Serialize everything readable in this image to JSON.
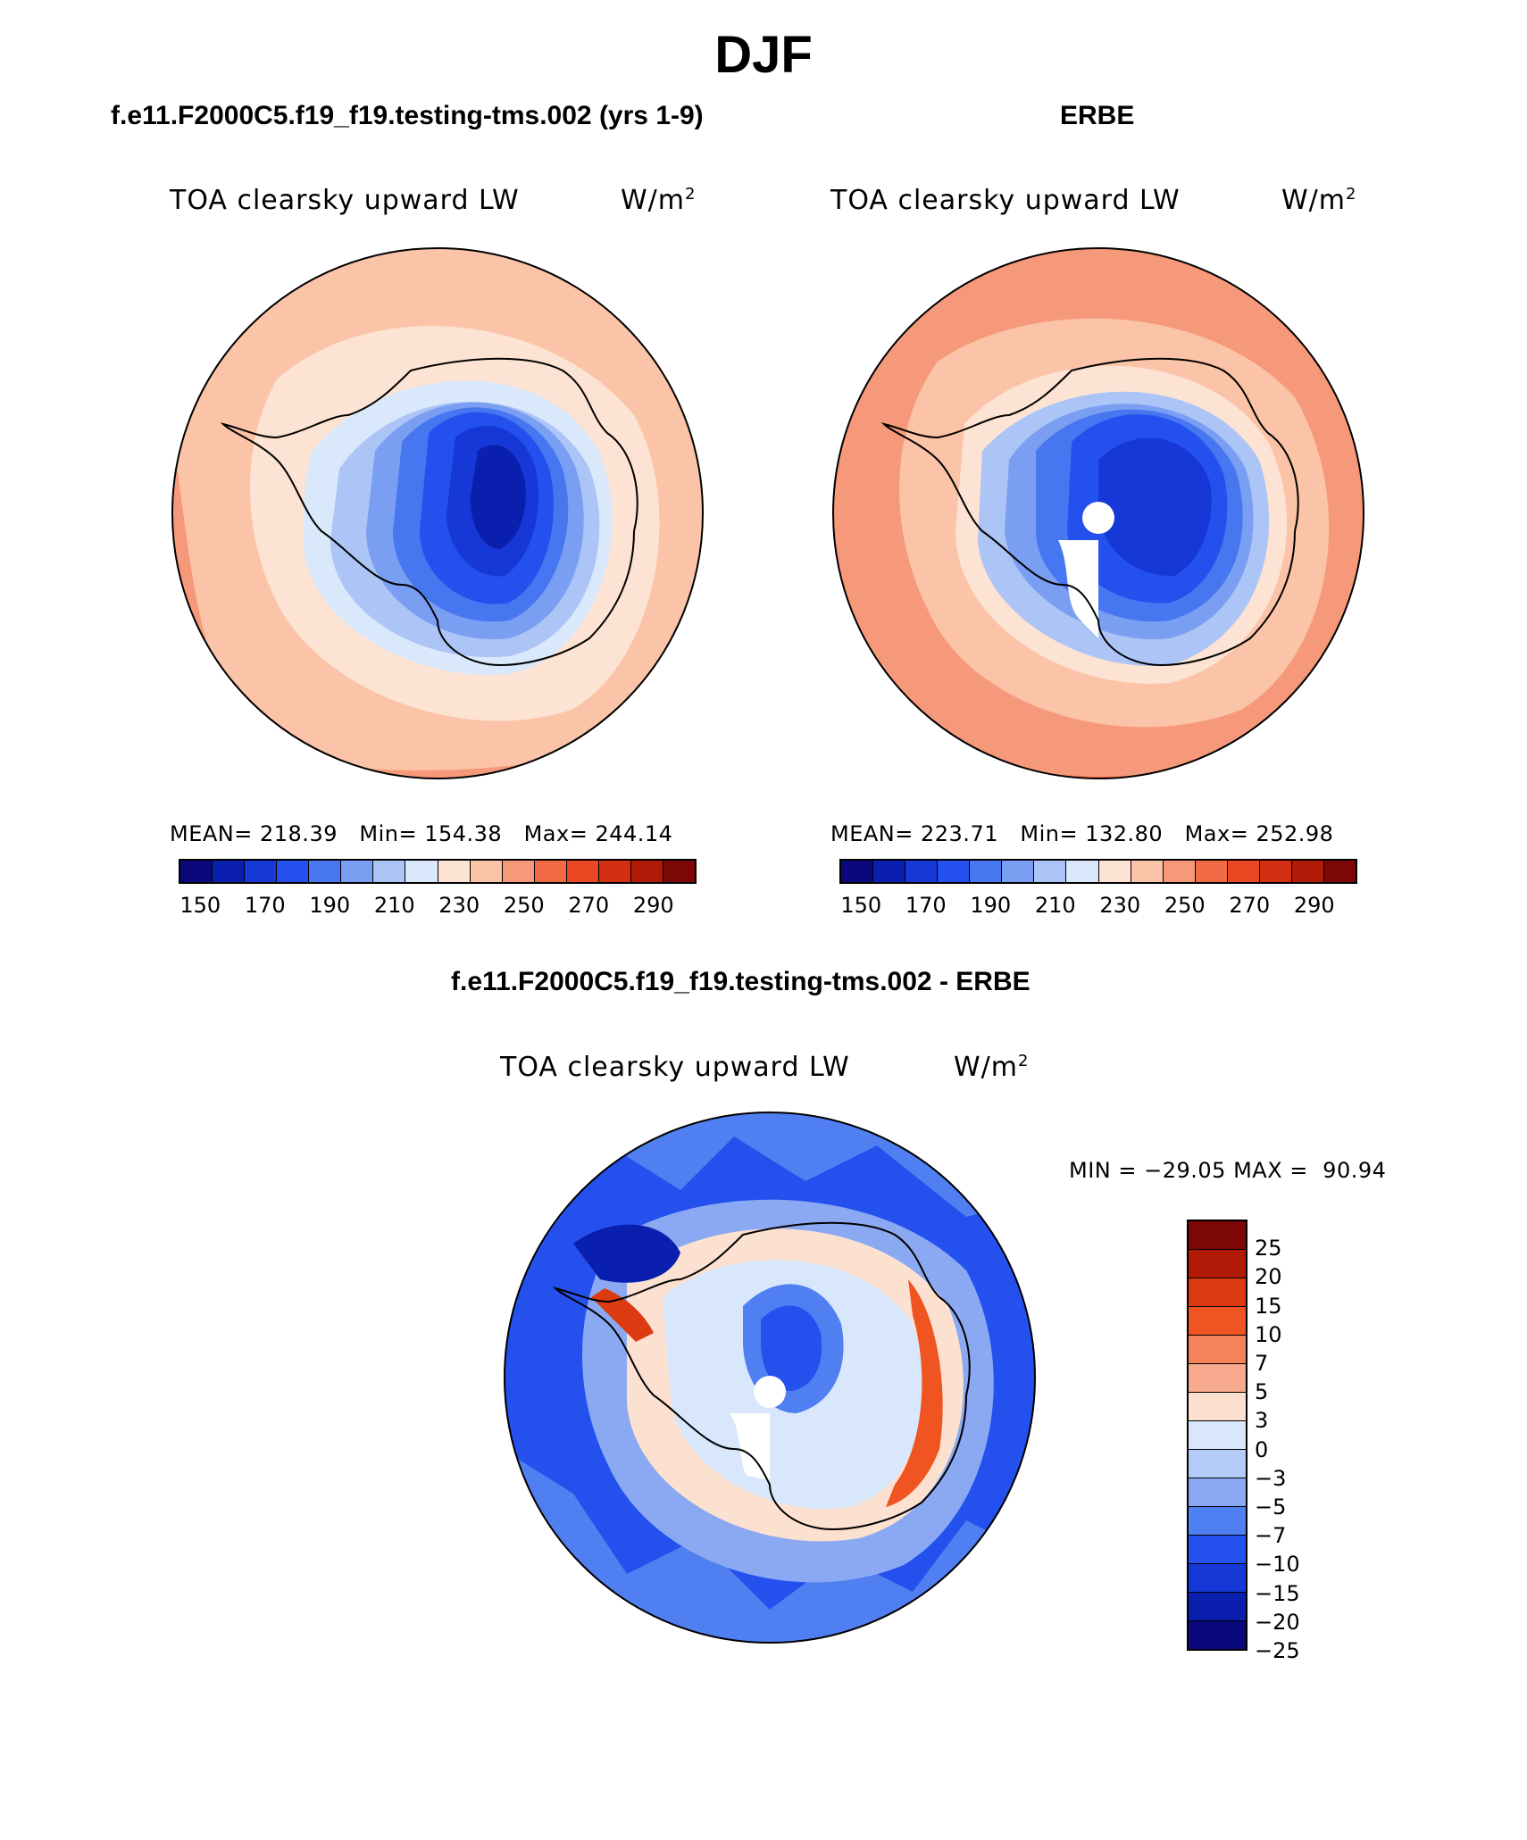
{
  "title": "DJF",
  "panels": [
    {
      "title": "f.e11.F2000C5.f19_f19.testing-tms.002 (yrs 1-9)",
      "field_label": "TOA clearsky upward LW",
      "units_base": "W/m",
      "units_exp": "2",
      "stats": {
        "mean_label": "MEAN=",
        "mean": "218.39",
        "min_label": "Min=",
        "min": "154.38",
        "max_label": "Max=",
        "max": "244.14"
      }
    },
    {
      "title": "ERBE",
      "field_label": "TOA clearsky upward LW",
      "units_base": "W/m",
      "units_exp": "2",
      "stats": {
        "mean_label": "MEAN=",
        "mean": "223.71",
        "min_label": "Min=",
        "min": "132.80",
        "max_label": "Max=",
        "max": "252.98"
      }
    }
  ],
  "abs_colorbar": {
    "colors": [
      "#08087a",
      "#0b1fae",
      "#1538d6",
      "#2451ee",
      "#4777f0",
      "#7a9ff2",
      "#adc4f6",
      "#d9e8fb",
      "#fde3d3",
      "#fbc3a7",
      "#f6997a",
      "#f06a45",
      "#eb4722",
      "#d32e10",
      "#b11a06",
      "#7d0606"
    ],
    "labels": [
      "150",
      "170",
      "190",
      "210",
      "230",
      "250",
      "270",
      "290"
    ]
  },
  "diff_panel": {
    "title": "f.e11.F2000C5.f19_f19.testing-tms.002 - ERBE",
    "field_label": "TOA clearsky upward LW",
    "units_base": "W/m",
    "units_exp": "2",
    "minmax": {
      "min_label": "MIN =",
      "min": "−29.05",
      "max_label": "MAX =",
      "max": "90.94"
    }
  },
  "diff_colorbar": {
    "colors_top_to_bottom": [
      "#7d0606",
      "#b11a06",
      "#dc3a10",
      "#f05420",
      "#f4835a",
      "#f8aa8e",
      "#fde1d0",
      "#d8e7fb",
      "#b3cbf6",
      "#8aa9f2",
      "#4f7ff0",
      "#2451ee",
      "#1538d6",
      "#0b1fae",
      "#08087a"
    ],
    "labels_top_to_bottom": [
      "25",
      "20",
      "15",
      "10",
      "7",
      "5",
      "3",
      "0",
      "−3",
      "−5",
      "−7",
      "−10",
      "−15",
      "−20",
      "−25"
    ]
  }
}
